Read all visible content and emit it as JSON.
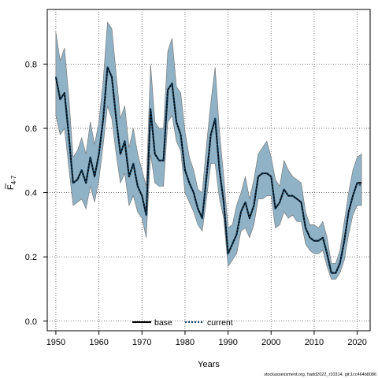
{
  "chart_data": {
    "type": "line",
    "title": "",
    "xlabel": "Years",
    "ylabel_main": "F",
    "ylabel_sub": "4-7",
    "xlim": [
      1948,
      2023
    ],
    "ylim": [
      -0.03,
      0.97
    ],
    "xticks": [
      1950,
      1960,
      1970,
      1980,
      1990,
      2000,
      2010,
      2020
    ],
    "yticks": [
      0.0,
      0.2,
      0.4,
      0.6,
      0.8
    ],
    "xtick_labels": [
      "1950",
      "1960",
      "1970",
      "1980",
      "1990",
      "2000",
      "2010",
      "2020"
    ],
    "ytick_labels": [
      "0.0",
      "0.2",
      "0.4",
      "0.6",
      "0.8"
    ],
    "grid": true,
    "legend_position": "bottom",
    "colors": {
      "band": "#8fb2c6",
      "band_edge": "#7a7a7a",
      "base": "#000000",
      "current": "#0b3f63"
    },
    "x": [
      1950,
      1951,
      1952,
      1953,
      1954,
      1955,
      1956,
      1957,
      1958,
      1959,
      1960,
      1961,
      1962,
      1963,
      1964,
      1965,
      1966,
      1967,
      1968,
      1969,
      1970,
      1971,
      1972,
      1973,
      1974,
      1975,
      1976,
      1977,
      1978,
      1979,
      1980,
      1981,
      1982,
      1983,
      1984,
      1985,
      1986,
      1987,
      1988,
      1989,
      1990,
      1991,
      1992,
      1993,
      1994,
      1995,
      1996,
      1997,
      1998,
      1999,
      2000,
      2001,
      2002,
      2003,
      2004,
      2005,
      2006,
      2007,
      2008,
      2009,
      2010,
      2011,
      2012,
      2013,
      2014,
      2015,
      2016,
      2017,
      2018,
      2019,
      2020,
      2021
    ],
    "lower": [
      0.64,
      0.58,
      0.6,
      0.48,
      0.36,
      0.37,
      0.38,
      0.35,
      0.42,
      0.37,
      0.44,
      0.55,
      0.67,
      0.63,
      0.52,
      0.43,
      0.46,
      0.36,
      0.39,
      0.34,
      0.32,
      0.26,
      0.52,
      0.43,
      0.42,
      0.42,
      0.62,
      0.64,
      0.56,
      0.53,
      0.4,
      0.37,
      0.34,
      0.3,
      0.28,
      0.38,
      0.49,
      0.49,
      0.38,
      0.32,
      0.17,
      0.19,
      0.21,
      0.28,
      0.29,
      0.26,
      0.3,
      0.38,
      0.38,
      0.39,
      0.39,
      0.29,
      0.3,
      0.34,
      0.32,
      0.33,
      0.31,
      0.31,
      0.24,
      0.22,
      0.21,
      0.21,
      0.22,
      0.17,
      0.13,
      0.13,
      0.15,
      0.19,
      0.27,
      0.33,
      0.36,
      0.36
    ],
    "series": [
      {
        "name": "base",
        "values": [
          0.76,
          0.69,
          0.71,
          0.58,
          0.43,
          0.44,
          0.47,
          0.43,
          0.51,
          0.45,
          0.52,
          0.63,
          0.79,
          0.76,
          0.63,
          0.52,
          0.56,
          0.45,
          0.49,
          0.42,
          0.39,
          0.33,
          0.66,
          0.52,
          0.5,
          0.5,
          0.72,
          0.74,
          0.62,
          0.58,
          0.47,
          0.43,
          0.4,
          0.35,
          0.32,
          0.45,
          0.58,
          0.63,
          0.47,
          0.37,
          0.21,
          0.24,
          0.27,
          0.34,
          0.37,
          0.32,
          0.36,
          0.45,
          0.46,
          0.46,
          0.45,
          0.35,
          0.37,
          0.41,
          0.39,
          0.39,
          0.38,
          0.37,
          0.29,
          0.26,
          0.25,
          0.25,
          0.26,
          0.21,
          0.15,
          0.15,
          0.18,
          0.25,
          0.34,
          0.39,
          0.43,
          0.43
        ]
      },
      {
        "name": "current",
        "values": [
          0.76,
          0.69,
          0.71,
          0.58,
          0.43,
          0.44,
          0.47,
          0.43,
          0.51,
          0.45,
          0.52,
          0.63,
          0.79,
          0.76,
          0.63,
          0.52,
          0.56,
          0.45,
          0.49,
          0.42,
          0.39,
          0.33,
          0.66,
          0.52,
          0.5,
          0.5,
          0.72,
          0.74,
          0.62,
          0.58,
          0.47,
          0.43,
          0.4,
          0.35,
          0.32,
          0.45,
          0.58,
          0.63,
          0.47,
          0.37,
          0.21,
          0.24,
          0.27,
          0.34,
          0.37,
          0.32,
          0.36,
          0.45,
          0.46,
          0.46,
          0.45,
          0.35,
          0.37,
          0.41,
          0.39,
          0.39,
          0.38,
          0.37,
          0.29,
          0.26,
          0.25,
          0.25,
          0.26,
          0.21,
          0.15,
          0.15,
          0.18,
          0.25,
          0.34,
          0.39,
          0.43,
          0.42
        ]
      }
    ],
    "upper": [
      0.9,
      0.81,
      0.85,
      0.7,
      0.51,
      0.53,
      0.57,
      0.52,
      0.62,
      0.55,
      0.62,
      0.75,
      0.93,
      0.91,
      0.77,
      0.63,
      0.67,
      0.54,
      0.6,
      0.52,
      0.47,
      0.42,
      0.8,
      0.62,
      0.6,
      0.6,
      0.84,
      0.88,
      0.73,
      0.71,
      0.59,
      0.51,
      0.47,
      0.41,
      0.4,
      0.55,
      0.68,
      0.79,
      0.59,
      0.45,
      0.29,
      0.3,
      0.36,
      0.4,
      0.45,
      0.38,
      0.44,
      0.52,
      0.54,
      0.56,
      0.51,
      0.44,
      0.42,
      0.5,
      0.47,
      0.45,
      0.44,
      0.43,
      0.34,
      0.3,
      0.3,
      0.29,
      0.31,
      0.26,
      0.18,
      0.18,
      0.22,
      0.31,
      0.4,
      0.47,
      0.51,
      0.52
    ],
    "footnote": "stockassessment.org, hadd2022_r10314, git:1cc464b8086"
  }
}
